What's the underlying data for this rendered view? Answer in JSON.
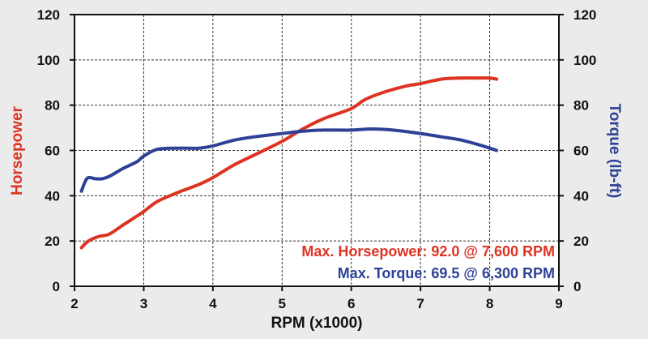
{
  "chart_data": {
    "type": "line",
    "xlabel": "RPM (x1000)",
    "ylabel_left": "Horsepower",
    "ylabel_right": "Torque (lb-ft)",
    "xlim": [
      2,
      9
    ],
    "ylim": [
      0,
      120
    ],
    "x_ticks": [
      "2",
      "3",
      "4",
      "5",
      "6",
      "7",
      "8",
      "9"
    ],
    "y_ticks": [
      "0",
      "20",
      "40",
      "60",
      "80",
      "100",
      "120"
    ],
    "grid": true,
    "colors": {
      "horsepower": "#dd3322",
      "torque": "#2e4196"
    },
    "series": [
      {
        "name": "Horsepower",
        "axis": "left",
        "x": [
          2.1,
          2.2,
          2.35,
          2.5,
          2.7,
          2.9,
          3.0,
          3.2,
          3.5,
          3.8,
          4.0,
          4.3,
          4.6,
          5.0,
          5.3,
          5.6,
          6.0,
          6.2,
          6.5,
          6.8,
          7.0,
          7.3,
          7.6,
          7.8,
          8.0,
          8.1
        ],
        "values": [
          17,
          20,
          22,
          23,
          27,
          31,
          33,
          37.5,
          41.5,
          45,
          48,
          53.5,
          58,
          64,
          69.5,
          74,
          78.5,
          82.5,
          86,
          88.5,
          89.5,
          91.5,
          92,
          92,
          92,
          91.5
        ]
      },
      {
        "name": "Torque",
        "axis": "right",
        "x": [
          2.1,
          2.15,
          2.2,
          2.3,
          2.4,
          2.5,
          2.7,
          2.9,
          3.0,
          3.2,
          3.5,
          3.8,
          4.0,
          4.3,
          4.6,
          5.0,
          5.3,
          5.6,
          6.0,
          6.3,
          6.6,
          7.0,
          7.3,
          7.6,
          7.9,
          8.1
        ],
        "values": [
          42,
          46,
          48,
          47.5,
          47.5,
          48.5,
          52,
          55,
          57.5,
          60.5,
          61,
          61,
          62,
          64.5,
          66,
          67.5,
          68.5,
          69,
          69,
          69.5,
          69,
          67.5,
          66,
          64.5,
          62,
          60
        ]
      }
    ],
    "annotations": [
      {
        "text": "Max. Horsepower: 92.0 @ 7,600 RPM",
        "color": "#dd3322"
      },
      {
        "text": "Max. Torque: 69.5 @ 6,300 RPM",
        "color": "#2e4196"
      }
    ]
  }
}
